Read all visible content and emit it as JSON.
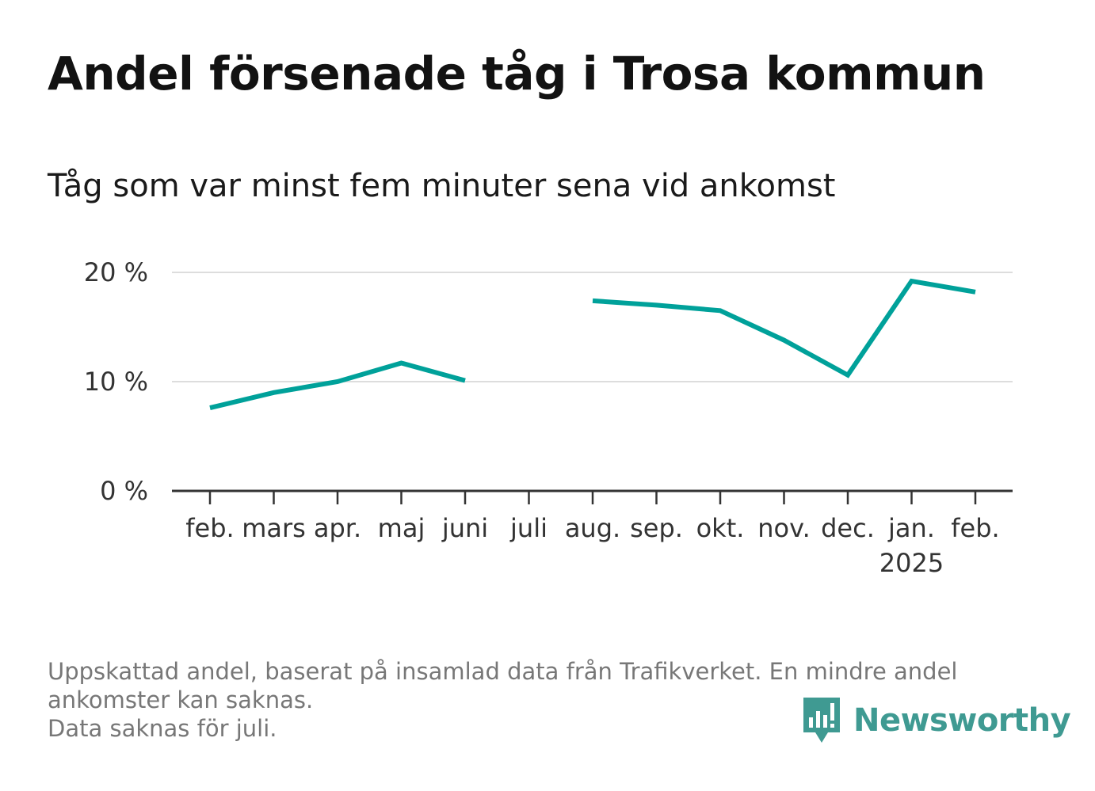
{
  "title": "Andel försenade tåg i Trosa kommun",
  "subtitle": "Tåg som var minst fem minuter sena vid ankomst",
  "footnote": [
    "Uppskattad andel, baserat på insamlad data från Trafikverket. En mindre andel",
    "ankomster kan saknas.",
    "Data saknas för juli."
  ],
  "brand": {
    "name": "Newsworthy",
    "icon": "newsworthy-logo-icon",
    "color": "#3f9a92"
  },
  "chart_data": {
    "type": "line",
    "categories": [
      "feb.",
      "mars",
      "apr.",
      "maj",
      "juni",
      "juli",
      "aug.",
      "sep.",
      "okt.",
      "nov.",
      "dec.",
      "jan.",
      "feb."
    ],
    "category_sublabels": [
      "",
      "",
      "",
      "",
      "",
      "",
      "",
      "",
      "",
      "",
      "",
      "2025",
      ""
    ],
    "series": [
      {
        "values": [
          7.6,
          9.0,
          10.0,
          11.7,
          10.1,
          null,
          17.4,
          17.0,
          16.5,
          13.8,
          10.6,
          19.2,
          18.2
        ],
        "color": "#00a19a"
      }
    ],
    "yticks": [
      {
        "value": 0,
        "label": "0 %"
      },
      {
        "value": 10,
        "label": "10 %"
      },
      {
        "value": 20,
        "label": "20 %"
      }
    ],
    "ylim": [
      0,
      20
    ],
    "unit": "%",
    "grid": true,
    "legend": "none"
  }
}
